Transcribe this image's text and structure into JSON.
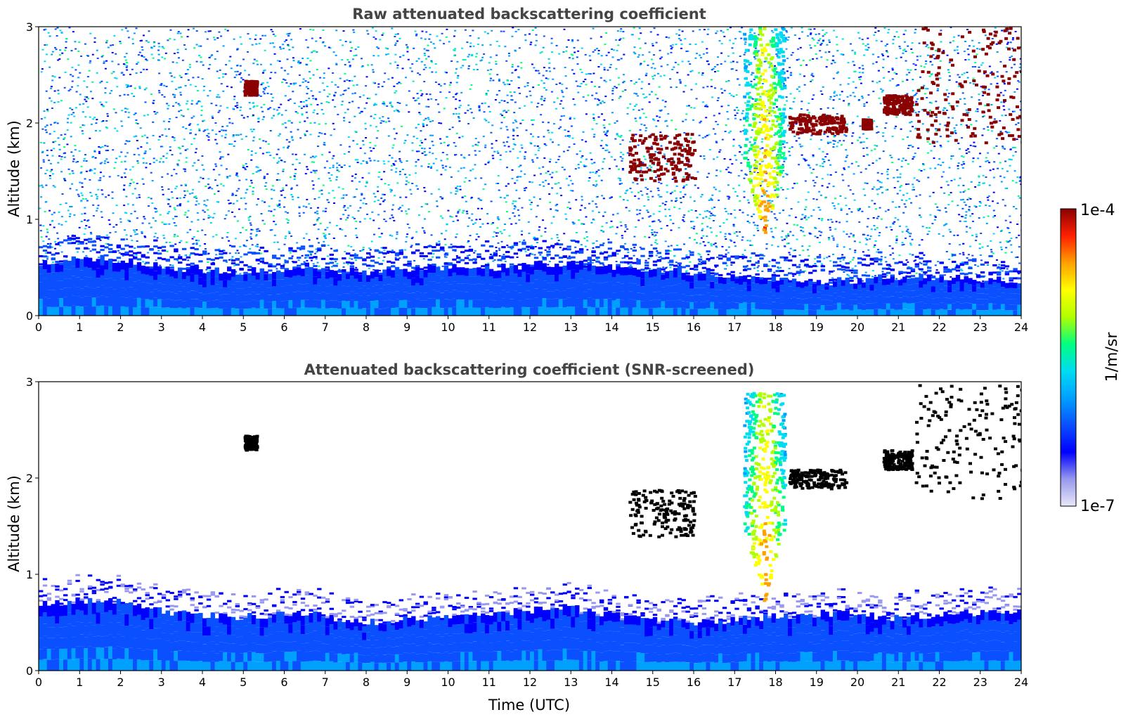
{
  "colors": {
    "colormap": [
      "#e8e8f8",
      "#9898ee",
      "#0000ff",
      "#0a50ff",
      "#00a0ff",
      "#00dcf0",
      "#00ff80",
      "#b0ff00",
      "#ffff00",
      "#ffa000",
      "#ff2000",
      "#8b0000"
    ],
    "saturated_screened": "#000000",
    "axis": "#000000",
    "title": "#444444"
  },
  "colorbar": {
    "max_label": "1e-4",
    "min_label": "1e-7",
    "unit_label": "1/m/sr"
  },
  "chart_data": [
    {
      "type": "heatmap",
      "title": "Raw attenuated backscattering coefficient",
      "xlabel": "",
      "ylabel": "Altitude (km)",
      "xlim": [
        0,
        24
      ],
      "ylim": [
        0,
        3
      ],
      "xticks": [
        "0",
        "1",
        "2",
        "3",
        "4",
        "5",
        "6",
        "7",
        "8",
        "9",
        "10",
        "11",
        "12",
        "13",
        "14",
        "15",
        "16",
        "17",
        "18",
        "19",
        "20",
        "21",
        "22",
        "23",
        "24"
      ],
      "yticks": [
        "0",
        "1",
        "2",
        "3"
      ],
      "colorscale": "log",
      "clim": [
        1e-07,
        0.0001
      ],
      "background_noise": "grainy blue-cyan speckle throughout upper levels",
      "layers": [
        {
          "feature": "boundary layer",
          "t": [
            0,
            24
          ],
          "top_km": [
            0.55,
            0.6,
            0.5,
            0.45,
            0.5,
            0.45,
            0.5,
            0.5,
            0.55,
            0.5,
            0.45,
            0.4,
            0.35,
            0.4,
            0.4,
            0.35
          ],
          "value": "~1e-6"
        },
        {
          "feature": "elevated cloud",
          "t": [
            5.0,
            5.3
          ],
          "alt_km": [
            2.3,
            2.45
          ],
          "value": ">=1e-4"
        },
        {
          "feature": "cloud",
          "t": [
            14.4,
            16.0
          ],
          "alt_km": [
            1.4,
            1.9
          ],
          "value": ">=1e-4"
        },
        {
          "feature": "precipitating cloud",
          "t": [
            17.2,
            18.2
          ],
          "alt_km": [
            0.8,
            3.0
          ],
          "value": "1e-5 to 5e-5"
        },
        {
          "feature": "cloud",
          "t": [
            18.3,
            19.7
          ],
          "alt_km": [
            1.9,
            2.1
          ],
          "value": ">=1e-4"
        },
        {
          "feature": "cloud",
          "t": [
            20.1,
            20.3
          ],
          "alt_km": [
            1.95,
            2.05
          ],
          "value": ">=1e-4"
        },
        {
          "feature": "cloud",
          "t": [
            20.6,
            21.3
          ],
          "alt_km": [
            2.1,
            2.3
          ],
          "value": ">=1e-4"
        },
        {
          "feature": "cloud",
          "t": [
            21.4,
            24.0
          ],
          "alt_km": [
            1.8,
            3.0
          ],
          "value": ">=1e-4"
        }
      ]
    },
    {
      "type": "heatmap",
      "title": "Attenuated backscattering coefficient (SNR-screened)",
      "xlabel": "Time (UTC)",
      "ylabel": "Altitude (km)",
      "xlim": [
        0,
        24
      ],
      "ylim": [
        0,
        3
      ],
      "xticks": [
        "0",
        "1",
        "2",
        "3",
        "4",
        "5",
        "6",
        "7",
        "8",
        "9",
        "10",
        "11",
        "12",
        "13",
        "14",
        "15",
        "16",
        "17",
        "18",
        "19",
        "20",
        "21",
        "22",
        "23",
        "24"
      ],
      "yticks": [
        "0",
        "1",
        "2",
        "3"
      ],
      "colorscale": "log",
      "clim": [
        1e-07,
        0.0001
      ],
      "background_noise": "screened (white) above boundary layer",
      "layers": [
        {
          "feature": "boundary layer",
          "t": [
            0,
            24
          ],
          "top_km": [
            0.7,
            0.75,
            0.6,
            0.55,
            0.6,
            0.5,
            0.55,
            0.6,
            0.65,
            0.55,
            0.5,
            0.55,
            0.6,
            0.55,
            0.6,
            0.6
          ],
          "value": "~1e-6"
        },
        {
          "feature": "elevated cloud",
          "t": [
            5.0,
            5.3
          ],
          "alt_km": [
            2.3,
            2.45
          ],
          "value": "saturated"
        },
        {
          "feature": "cloud",
          "t": [
            14.4,
            16.0
          ],
          "alt_km": [
            1.4,
            1.9
          ],
          "value": "saturated"
        },
        {
          "feature": "precipitating cloud",
          "t": [
            17.2,
            18.2
          ],
          "alt_km": [
            0.7,
            2.9
          ],
          "value": "1e-5 to 5e-5"
        },
        {
          "feature": "cloud",
          "t": [
            18.3,
            19.7
          ],
          "alt_km": [
            1.9,
            2.1
          ],
          "value": "saturated"
        },
        {
          "feature": "cloud",
          "t": [
            20.6,
            21.3
          ],
          "alt_km": [
            2.1,
            2.3
          ],
          "value": "saturated"
        },
        {
          "feature": "cloud",
          "t": [
            21.4,
            24.0
          ],
          "alt_km": [
            1.8,
            3.0
          ],
          "value": "saturated"
        }
      ]
    }
  ]
}
